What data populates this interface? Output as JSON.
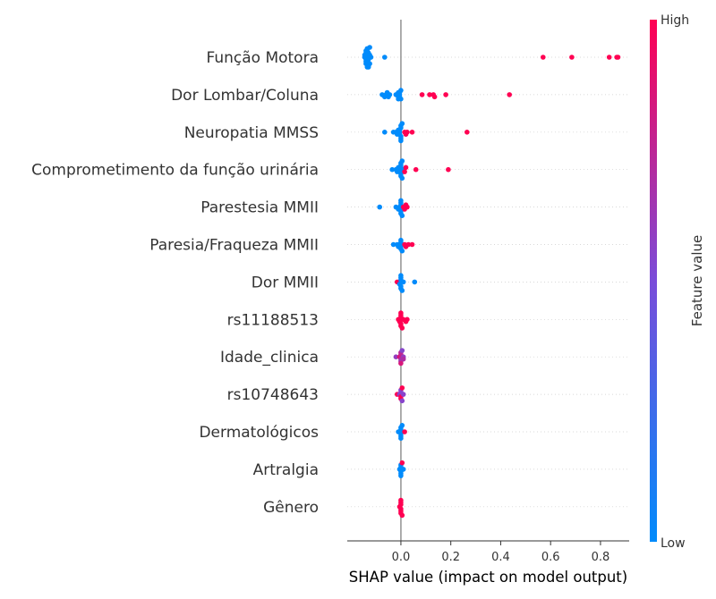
{
  "chart_data": {
    "type": "scatter",
    "subtype": "shap-beeswarm-summary",
    "xlabel": "SHAP value (impact on model output)",
    "xlim": [
      -0.215,
      0.915
    ],
    "xticks": [
      "0.0",
      "0.2",
      "0.4",
      "0.6",
      "0.8"
    ],
    "xtick_values": [
      0.0,
      0.2,
      0.4,
      0.6,
      0.8
    ],
    "colorbar": {
      "title": "Feature value",
      "high_label": "High",
      "low_label": "Low",
      "low_color": "#008bfb",
      "high_color": "#ff0052"
    },
    "features": [
      {
        "name": "Função Motora",
        "points": [
          {
            "x": -0.145,
            "v": 0.0
          },
          {
            "x": -0.14,
            "v": 0.0
          },
          {
            "x": -0.135,
            "v": 0.0
          },
          {
            "x": -0.13,
            "v": 0.0
          },
          {
            "x": -0.125,
            "v": 0.0
          },
          {
            "x": -0.12,
            "v": 0.0
          },
          {
            "x": -0.145,
            "v": 0.0
          },
          {
            "x": -0.14,
            "v": 0.0
          },
          {
            "x": -0.135,
            "v": 0.0
          },
          {
            "x": -0.13,
            "v": 0.0
          },
          {
            "x": -0.125,
            "v": 0.0
          },
          {
            "x": -0.14,
            "v": 0.0
          },
          {
            "x": -0.135,
            "v": 0.0
          },
          {
            "x": -0.13,
            "v": 0.0
          },
          {
            "x": -0.14,
            "v": 0.0
          },
          {
            "x": -0.135,
            "v": 0.0
          },
          {
            "x": -0.13,
            "v": 0.0
          },
          {
            "x": -0.125,
            "v": 0.0
          },
          {
            "x": -0.14,
            "v": 0.0
          },
          {
            "x": -0.135,
            "v": 0.0
          },
          {
            "x": -0.065,
            "v": 0.0
          },
          {
            "x": 0.57,
            "v": 1.0
          },
          {
            "x": 0.685,
            "v": 1.0
          },
          {
            "x": 0.835,
            "v": 1.0
          },
          {
            "x": 0.865,
            "v": 1.0
          },
          {
            "x": 0.87,
            "v": 1.0
          }
        ]
      },
      {
        "name": "Dor Lombar/Coluna",
        "points": [
          {
            "x": -0.075,
            "v": 0.0
          },
          {
            "x": -0.065,
            "v": 0.0
          },
          {
            "x": -0.06,
            "v": 0.0
          },
          {
            "x": -0.05,
            "v": 0.0
          },
          {
            "x": -0.055,
            "v": 0.0
          },
          {
            "x": -0.045,
            "v": 0.0
          },
          {
            "x": -0.02,
            "v": 0.0
          },
          {
            "x": -0.01,
            "v": 0.0
          },
          {
            "x": -0.01,
            "v": 0.0
          },
          {
            "x": -0.01,
            "v": 0.0
          },
          {
            "x": -0.005,
            "v": 0.0
          },
          {
            "x": -0.005,
            "v": 0.0
          },
          {
            "x": -0.005,
            "v": 0.0
          },
          {
            "x": 0.0,
            "v": 0.0
          },
          {
            "x": 0.0,
            "v": 0.0
          },
          {
            "x": 0.085,
            "v": 1.0
          },
          {
            "x": 0.115,
            "v": 1.0
          },
          {
            "x": 0.13,
            "v": 1.0
          },
          {
            "x": 0.135,
            "v": 1.0
          },
          {
            "x": 0.18,
            "v": 1.0
          },
          {
            "x": 0.435,
            "v": 1.0
          }
        ]
      },
      {
        "name": "Neuropatia MMSS",
        "points": [
          {
            "x": -0.065,
            "v": 0.0
          },
          {
            "x": -0.03,
            "v": 0.0
          },
          {
            "x": -0.02,
            "v": 0.0
          },
          {
            "x": -0.015,
            "v": 0.0
          },
          {
            "x": -0.01,
            "v": 0.0
          },
          {
            "x": -0.005,
            "v": 0.0
          },
          {
            "x": -0.005,
            "v": 0.0
          },
          {
            "x": -0.005,
            "v": 0.0
          },
          {
            "x": 0.0,
            "v": 0.0
          },
          {
            "x": 0.0,
            "v": 0.0
          },
          {
            "x": 0.0,
            "v": 0.0
          },
          {
            "x": 0.0,
            "v": 0.0
          },
          {
            "x": 0.0,
            "v": 0.0
          },
          {
            "x": 0.005,
            "v": 0.0
          },
          {
            "x": 0.015,
            "v": 1.0
          },
          {
            "x": 0.02,
            "v": 1.0
          },
          {
            "x": 0.025,
            "v": 1.0
          },
          {
            "x": 0.045,
            "v": 1.0
          },
          {
            "x": 0.265,
            "v": 1.0
          }
        ]
      },
      {
        "name": "Comprometimento da função urinária",
        "points": [
          {
            "x": -0.035,
            "v": 0.0
          },
          {
            "x": -0.02,
            "v": 0.0
          },
          {
            "x": -0.015,
            "v": 0.0
          },
          {
            "x": -0.01,
            "v": 0.0
          },
          {
            "x": -0.005,
            "v": 0.0
          },
          {
            "x": -0.005,
            "v": 0.0
          },
          {
            "x": 0.0,
            "v": 0.0
          },
          {
            "x": 0.0,
            "v": 0.0
          },
          {
            "x": 0.0,
            "v": 0.0
          },
          {
            "x": 0.0,
            "v": 0.0
          },
          {
            "x": 0.0,
            "v": 0.0
          },
          {
            "x": 0.005,
            "v": 0.0
          },
          {
            "x": 0.005,
            "v": 0.0
          },
          {
            "x": 0.01,
            "v": 0.0
          },
          {
            "x": 0.015,
            "v": 1.0
          },
          {
            "x": 0.02,
            "v": 1.0
          },
          {
            "x": 0.06,
            "v": 1.0
          },
          {
            "x": 0.19,
            "v": 1.0
          }
        ]
      },
      {
        "name": "Parestesia MMII",
        "points": [
          {
            "x": -0.085,
            "v": 0.0
          },
          {
            "x": -0.02,
            "v": 0.0
          },
          {
            "x": -0.01,
            "v": 0.0
          },
          {
            "x": -0.005,
            "v": 0.0
          },
          {
            "x": -0.005,
            "v": 0.0
          },
          {
            "x": 0.0,
            "v": 0.0
          },
          {
            "x": 0.0,
            "v": 0.0
          },
          {
            "x": 0.0,
            "v": 0.0
          },
          {
            "x": 0.0,
            "v": 0.0
          },
          {
            "x": 0.0,
            "v": 0.0
          },
          {
            "x": 0.005,
            "v": 0.0
          },
          {
            "x": 0.01,
            "v": 1.0
          },
          {
            "x": 0.015,
            "v": 1.0
          },
          {
            "x": 0.02,
            "v": 1.0
          },
          {
            "x": 0.025,
            "v": 1.0
          }
        ]
      },
      {
        "name": "Paresia/Fraqueza MMII",
        "points": [
          {
            "x": -0.03,
            "v": 0.0
          },
          {
            "x": -0.015,
            "v": 0.0
          },
          {
            "x": -0.01,
            "v": 0.0
          },
          {
            "x": -0.005,
            "v": 0.0
          },
          {
            "x": 0.0,
            "v": 0.0
          },
          {
            "x": 0.0,
            "v": 0.0
          },
          {
            "x": 0.0,
            "v": 0.0
          },
          {
            "x": 0.0,
            "v": 0.0
          },
          {
            "x": 0.005,
            "v": 0.0
          },
          {
            "x": 0.015,
            "v": 1.0
          },
          {
            "x": 0.02,
            "v": 1.0
          },
          {
            "x": 0.03,
            "v": 1.0
          },
          {
            "x": 0.045,
            "v": 1.0
          }
        ]
      },
      {
        "name": "Dor MMII",
        "points": [
          {
            "x": -0.015,
            "v": 1.0
          },
          {
            "x": -0.005,
            "v": 1.0
          },
          {
            "x": -0.005,
            "v": 0.0
          },
          {
            "x": 0.0,
            "v": 0.0
          },
          {
            "x": 0.0,
            "v": 0.0
          },
          {
            "x": 0.0,
            "v": 0.0
          },
          {
            "x": 0.0,
            "v": 0.0
          },
          {
            "x": 0.0,
            "v": 0.0
          },
          {
            "x": 0.005,
            "v": 0.0
          },
          {
            "x": 0.01,
            "v": 0.0
          },
          {
            "x": 0.055,
            "v": 0.0
          }
        ]
      },
      {
        "name": "rs11188513",
        "points": [
          {
            "x": -0.01,
            "v": 1.0
          },
          {
            "x": -0.005,
            "v": 1.0
          },
          {
            "x": -0.005,
            "v": 1.0
          },
          {
            "x": 0.0,
            "v": 1.0
          },
          {
            "x": 0.0,
            "v": 1.0
          },
          {
            "x": 0.0,
            "v": 1.0
          },
          {
            "x": 0.0,
            "v": 1.0
          },
          {
            "x": 0.0,
            "v": 1.0
          },
          {
            "x": 0.005,
            "v": 1.0
          },
          {
            "x": 0.01,
            "v": 1.0
          },
          {
            "x": 0.02,
            "v": 1.0
          },
          {
            "x": 0.025,
            "v": 1.0
          }
        ]
      },
      {
        "name": "Idade_clinica",
        "points": [
          {
            "x": -0.02,
            "v": 0.6
          },
          {
            "x": -0.005,
            "v": 0.9
          },
          {
            "x": 0.0,
            "v": 0.7
          },
          {
            "x": 0.0,
            "v": 0.8
          },
          {
            "x": 0.0,
            "v": 0.65
          },
          {
            "x": 0.0,
            "v": 0.75
          },
          {
            "x": 0.0,
            "v": 0.85
          },
          {
            "x": 0.005,
            "v": 0.55
          },
          {
            "x": 0.01,
            "v": 0.6
          },
          {
            "x": 0.01,
            "v": 0.7
          }
        ]
      },
      {
        "name": "rs10748643",
        "points": [
          {
            "x": -0.015,
            "v": 1.0
          },
          {
            "x": -0.005,
            "v": 0.55
          },
          {
            "x": 0.0,
            "v": 1.0
          },
          {
            "x": 0.0,
            "v": 0.55
          },
          {
            "x": 0.0,
            "v": 1.0
          },
          {
            "x": 0.0,
            "v": 0.55
          },
          {
            "x": 0.005,
            "v": 0.55
          },
          {
            "x": 0.005,
            "v": 1.0
          },
          {
            "x": 0.01,
            "v": 0.55
          }
        ]
      },
      {
        "name": "Dermatológicos",
        "points": [
          {
            "x": -0.01,
            "v": 0.0
          },
          {
            "x": -0.005,
            "v": 0.0
          },
          {
            "x": 0.0,
            "v": 0.0
          },
          {
            "x": 0.0,
            "v": 0.0
          },
          {
            "x": 0.0,
            "v": 0.0
          },
          {
            "x": 0.0,
            "v": 0.0
          },
          {
            "x": 0.0,
            "v": 0.0
          },
          {
            "x": 0.005,
            "v": 0.0
          },
          {
            "x": 0.015,
            "v": 1.0
          }
        ]
      },
      {
        "name": "Artralgia",
        "points": [
          {
            "x": -0.005,
            "v": 0.0
          },
          {
            "x": 0.0,
            "v": 0.0
          },
          {
            "x": 0.0,
            "v": 0.0
          },
          {
            "x": 0.0,
            "v": 0.0
          },
          {
            "x": 0.0,
            "v": 0.0
          },
          {
            "x": 0.0,
            "v": 0.0
          },
          {
            "x": 0.005,
            "v": 1.0
          },
          {
            "x": 0.01,
            "v": 0.0
          }
        ]
      },
      {
        "name": "Gênero",
        "points": [
          {
            "x": -0.005,
            "v": 1.0
          },
          {
            "x": 0.0,
            "v": 1.0
          },
          {
            "x": 0.0,
            "v": 1.0
          },
          {
            "x": 0.0,
            "v": 1.0
          },
          {
            "x": 0.0,
            "v": 1.0
          },
          {
            "x": 0.0,
            "v": 1.0
          },
          {
            "x": 0.0,
            "v": 1.0
          },
          {
            "x": 0.005,
            "v": 1.0
          }
        ]
      }
    ]
  }
}
